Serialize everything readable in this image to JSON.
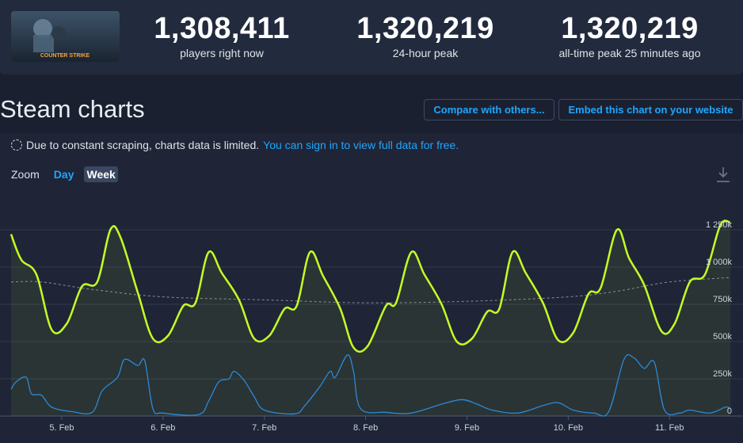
{
  "header": {
    "game_logo_text": "COUNTER STRIKE",
    "stats": [
      {
        "value": "1,308,411",
        "label": "players right now"
      },
      {
        "value": "1,320,219",
        "label": "24-hour peak"
      },
      {
        "value": "1,320,219",
        "label": "all-time peak 25 minutes ago"
      }
    ]
  },
  "section_title": "Steam charts",
  "buttons": {
    "compare": "Compare with others...",
    "embed": "Embed this chart on your website"
  },
  "notice": {
    "text": "Due to constant scraping, charts data is limited.",
    "link": "You can sign in to view full data for free."
  },
  "zoom": {
    "label": "Zoom",
    "options": [
      "Day",
      "Week"
    ],
    "selected": "Week"
  },
  "icons": {
    "download": "download-icon",
    "spinner": "loading-icon"
  },
  "colors": {
    "players": "#c4ff24",
    "twitch": "#2c89d6",
    "average": "#8a8f97"
  },
  "chart_data": {
    "type": "line",
    "x_labels": [
      "5. Feb",
      "6. Feb",
      "7. Feb",
      "8. Feb",
      "9. Feb",
      "10. Feb",
      "11. Feb"
    ],
    "y_tick_labels": [
      "0",
      "250k",
      "500k",
      "750k",
      "1 000k",
      "1 250k"
    ],
    "ylim": [
      0,
      1320000
    ],
    "grid": true,
    "x_days": [
      4.5,
      11.6
    ],
    "series": [
      {
        "key": "players",
        "color": "#c4ff24",
        "points": [
          [
            4.5,
            1220000
          ],
          [
            4.6,
            1050000
          ],
          [
            4.75,
            950000
          ],
          [
            4.9,
            580000
          ],
          [
            5.05,
            620000
          ],
          [
            5.2,
            870000
          ],
          [
            5.35,
            900000
          ],
          [
            5.48,
            1250000
          ],
          [
            5.58,
            1200000
          ],
          [
            5.75,
            830000
          ],
          [
            5.9,
            520000
          ],
          [
            6.05,
            540000
          ],
          [
            6.2,
            740000
          ],
          [
            6.32,
            760000
          ],
          [
            6.45,
            1100000
          ],
          [
            6.58,
            960000
          ],
          [
            6.75,
            780000
          ],
          [
            6.9,
            520000
          ],
          [
            7.05,
            540000
          ],
          [
            7.2,
            720000
          ],
          [
            7.32,
            740000
          ],
          [
            7.45,
            1100000
          ],
          [
            7.58,
            940000
          ],
          [
            7.75,
            720000
          ],
          [
            7.88,
            460000
          ],
          [
            8.02,
            470000
          ],
          [
            8.2,
            740000
          ],
          [
            8.3,
            760000
          ],
          [
            8.45,
            1100000
          ],
          [
            8.58,
            950000
          ],
          [
            8.75,
            750000
          ],
          [
            8.9,
            500000
          ],
          [
            9.05,
            520000
          ],
          [
            9.2,
            700000
          ],
          [
            9.32,
            720000
          ],
          [
            9.45,
            1100000
          ],
          [
            9.58,
            960000
          ],
          [
            9.75,
            760000
          ],
          [
            9.9,
            510000
          ],
          [
            10.05,
            560000
          ],
          [
            10.2,
            820000
          ],
          [
            10.32,
            860000
          ],
          [
            10.48,
            1250000
          ],
          [
            10.6,
            1060000
          ],
          [
            10.75,
            880000
          ],
          [
            10.92,
            570000
          ],
          [
            11.05,
            620000
          ],
          [
            11.2,
            900000
          ],
          [
            11.35,
            950000
          ],
          [
            11.5,
            1280000
          ],
          [
            11.6,
            1300000
          ]
        ]
      },
      {
        "key": "average",
        "color": "#8a8f97",
        "points": [
          [
            4.5,
            900000
          ],
          [
            4.8,
            900000
          ],
          [
            5.3,
            850000
          ],
          [
            6.0,
            800000
          ],
          [
            7.0,
            780000
          ],
          [
            8.0,
            760000
          ],
          [
            9.0,
            770000
          ],
          [
            10.0,
            800000
          ],
          [
            10.5,
            840000
          ],
          [
            11.0,
            900000
          ],
          [
            11.6,
            930000
          ]
        ]
      },
      {
        "key": "twitch",
        "color": "#2c89d6",
        "points": [
          [
            4.5,
            180000
          ],
          [
            4.55,
            230000
          ],
          [
            4.65,
            260000
          ],
          [
            4.7,
            150000
          ],
          [
            4.8,
            140000
          ],
          [
            4.9,
            60000
          ],
          [
            5.1,
            30000
          ],
          [
            5.3,
            25000
          ],
          [
            5.4,
            170000
          ],
          [
            5.55,
            260000
          ],
          [
            5.62,
            380000
          ],
          [
            5.75,
            340000
          ],
          [
            5.82,
            370000
          ],
          [
            5.9,
            50000
          ],
          [
            6.0,
            20000
          ],
          [
            6.35,
            10000
          ],
          [
            6.45,
            100000
          ],
          [
            6.55,
            230000
          ],
          [
            6.65,
            250000
          ],
          [
            6.7,
            300000
          ],
          [
            6.8,
            240000
          ],
          [
            6.9,
            130000
          ],
          [
            7.0,
            40000
          ],
          [
            7.3,
            15000
          ],
          [
            7.4,
            70000
          ],
          [
            7.55,
            200000
          ],
          [
            7.65,
            300000
          ],
          [
            7.7,
            260000
          ],
          [
            7.82,
            410000
          ],
          [
            7.88,
            300000
          ],
          [
            7.95,
            50000
          ],
          [
            8.2,
            25000
          ],
          [
            8.45,
            20000
          ],
          [
            8.75,
            80000
          ],
          [
            8.95,
            110000
          ],
          [
            9.1,
            80000
          ],
          [
            9.25,
            40000
          ],
          [
            9.5,
            20000
          ],
          [
            9.75,
            70000
          ],
          [
            9.9,
            90000
          ],
          [
            10.05,
            40000
          ],
          [
            10.25,
            20000
          ],
          [
            10.4,
            30000
          ],
          [
            10.55,
            380000
          ],
          [
            10.65,
            390000
          ],
          [
            10.75,
            320000
          ],
          [
            10.85,
            360000
          ],
          [
            10.95,
            40000
          ],
          [
            11.1,
            20000
          ],
          [
            11.2,
            40000
          ],
          [
            11.4,
            20000
          ],
          [
            11.55,
            60000
          ],
          [
            11.6,
            50000
          ]
        ]
      }
    ]
  }
}
